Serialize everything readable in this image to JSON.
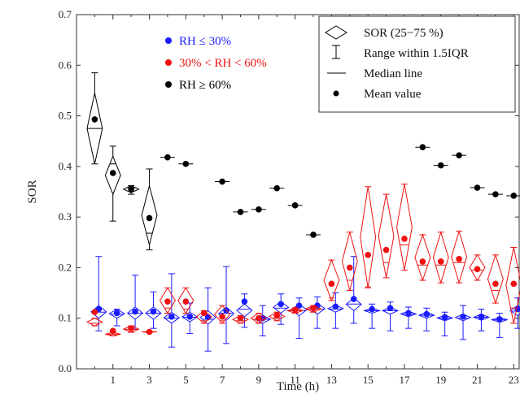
{
  "chart_data": {
    "type": "box",
    "xlabel": "Time (h)",
    "ylabel": "SOR",
    "xlim": [
      -1,
      23.3
    ],
    "ylim": [
      0,
      0.7
    ],
    "x_ticks": [
      1,
      3,
      5,
      7,
      9,
      11,
      13,
      15,
      17,
      19,
      21,
      23
    ],
    "y_ticks": [
      0.0,
      0.1,
      0.2,
      0.3,
      0.4,
      0.5,
      0.6,
      0.7
    ],
    "legend_box": {
      "placement": "top-right",
      "entries": [
        {
          "symbol": "diamond",
          "label": "SOR (25−75 %)"
        },
        {
          "symbol": "whisker",
          "label": "Range within 1.5IQR"
        },
        {
          "symbol": "line",
          "label": "Median line"
        },
        {
          "symbol": "dot",
          "label": "Mean value"
        }
      ]
    },
    "group_legend": {
      "placement": "top-left",
      "entries": [
        {
          "series_index": 0,
          "label": "RH ≤ 30%"
        },
        {
          "series_index": 1,
          "label": "30% < RH < 60%"
        },
        {
          "series_index": 2,
          "label": "RH ≥ 60%"
        }
      ]
    },
    "series": [
      {
        "color": "#1a1aff",
        "offset": 0.22,
        "x": [
          0,
          1,
          2,
          3,
          4,
          5,
          6,
          7,
          8,
          9,
          10,
          11,
          12,
          13,
          14,
          15,
          16,
          17,
          18,
          19,
          20,
          21,
          22,
          23
        ],
        "mean": [
          0.118,
          0.11,
          0.113,
          0.113,
          0.103,
          0.103,
          0.102,
          0.115,
          0.133,
          0.1,
          0.128,
          0.125,
          0.125,
          0.123,
          0.138,
          0.118,
          0.12,
          0.11,
          0.108,
          0.102,
          0.103,
          0.103,
          0.098,
          0.118
        ],
        "q1": [
          0.1,
          0.1,
          0.098,
          0.098,
          0.09,
          0.093,
          0.088,
          0.096,
          0.103,
          0.09,
          0.11,
          0.105,
          0.108,
          0.112,
          0.115,
          0.11,
          0.108,
          0.103,
          0.1,
          0.095,
          0.095,
          0.096,
          0.092,
          0.105
        ],
        "median": [
          0.112,
          0.108,
          0.11,
          0.11,
          0.1,
          0.102,
          0.098,
          0.11,
          0.118,
          0.098,
          0.12,
          0.115,
          0.118,
          0.118,
          0.128,
          0.115,
          0.115,
          0.108,
          0.106,
          0.1,
          0.1,
          0.102,
          0.097,
          0.114
        ],
        "q3": [
          0.125,
          0.118,
          0.122,
          0.122,
          0.112,
          0.112,
          0.115,
          0.122,
          0.128,
          0.106,
          0.133,
          0.128,
          0.13,
          0.126,
          0.14,
          0.12,
          0.122,
          0.114,
          0.112,
          0.106,
          0.108,
          0.108,
          0.102,
          0.125
        ],
        "wlow": [
          0.075,
          0.085,
          0.078,
          0.08,
          0.043,
          0.07,
          0.035,
          0.05,
          0.082,
          0.065,
          0.088,
          0.06,
          0.08,
          0.08,
          0.09,
          0.08,
          0.075,
          0.08,
          0.075,
          0.065,
          0.058,
          0.075,
          0.062,
          0.08
        ],
        "whigh": [
          0.222,
          0.118,
          0.185,
          0.152,
          0.188,
          0.13,
          0.16,
          0.202,
          0.148,
          0.125,
          0.148,
          0.14,
          0.142,
          0.15,
          0.222,
          0.128,
          0.132,
          0.122,
          0.12,
          0.112,
          0.125,
          0.118,
          0.11,
          0.14
        ]
      },
      {
        "color": "#ee1111",
        "offset": 0.0,
        "x": [
          0,
          1,
          2,
          3,
          4,
          5,
          6,
          7,
          8,
          9,
          10,
          11,
          12,
          13,
          14,
          15,
          16,
          17,
          18,
          19,
          20,
          21,
          22,
          23
        ],
        "mean": [
          0.112,
          0.075,
          0.08,
          0.073,
          0.133,
          0.133,
          0.11,
          0.103,
          0.1,
          0.1,
          0.105,
          0.117,
          0.12,
          0.168,
          0.2,
          0.225,
          0.235,
          0.257,
          0.212,
          0.212,
          0.217,
          0.197,
          0.168,
          0.168
        ],
        "q1": [
          0.085,
          0.065,
          0.072,
          0.072,
          0.11,
          0.11,
          0.09,
          0.09,
          0.09,
          0.09,
          0.095,
          0.11,
          0.112,
          0.135,
          0.155,
          0.16,
          0.18,
          0.195,
          0.175,
          0.17,
          0.17,
          0.175,
          0.13,
          0.09
        ],
        "median": [
          0.09,
          0.068,
          0.078,
          0.073,
          0.12,
          0.118,
          0.095,
          0.095,
          0.095,
          0.098,
          0.1,
          0.115,
          0.118,
          0.14,
          0.175,
          0.162,
          0.21,
          0.245,
          0.205,
          0.205,
          0.21,
          0.195,
          0.155,
          0.12
        ],
        "q3": [
          0.1,
          0.072,
          0.085,
          0.074,
          0.16,
          0.16,
          0.115,
          0.125,
          0.105,
          0.11,
          0.112,
          0.12,
          0.125,
          0.215,
          0.27,
          0.36,
          0.345,
          0.365,
          0.265,
          0.27,
          0.272,
          0.225,
          0.225,
          0.24
        ],
        "wlow": [
          0.085,
          0.065,
          0.072,
          0.072,
          0.11,
          0.11,
          0.09,
          0.09,
          0.09,
          0.09,
          0.095,
          0.11,
          0.112,
          0.135,
          0.155,
          0.16,
          0.18,
          0.195,
          0.175,
          0.17,
          0.17,
          0.175,
          0.13,
          0.09
        ],
        "whigh": [
          0.1,
          0.072,
          0.085,
          0.074,
          0.16,
          0.16,
          0.115,
          0.125,
          0.105,
          0.11,
          0.112,
          0.12,
          0.125,
          0.215,
          0.27,
          0.36,
          0.345,
          0.365,
          0.265,
          0.27,
          0.272,
          0.225,
          0.225,
          0.24
        ]
      },
      {
        "color": "#000000",
        "offset": 0.0,
        "x": [
          0,
          1,
          2,
          3,
          4,
          5,
          6,
          7,
          8,
          9,
          10,
          11,
          12,
          13,
          14,
          15,
          16,
          17,
          18,
          19,
          20,
          21,
          22,
          23
        ],
        "mean": [
          0.493,
          0.387,
          0.355,
          0.298,
          0.418,
          0.405,
          null,
          0.37,
          0.31,
          0.315,
          0.357,
          0.323,
          0.265,
          null,
          null,
          null,
          null,
          null,
          0.438,
          0.402,
          0.422,
          0.358,
          0.345,
          0.342
        ],
        "q1": [
          0.405,
          0.345,
          0.348,
          0.245,
          null,
          null,
          null,
          null,
          null,
          null,
          null,
          null,
          null,
          null,
          null,
          null,
          null,
          null,
          null,
          null,
          null,
          null,
          null,
          null
        ],
        "median": [
          0.475,
          0.405,
          0.358,
          0.268,
          null,
          null,
          null,
          null,
          null,
          null,
          null,
          null,
          null,
          null,
          null,
          null,
          null,
          null,
          null,
          null,
          null,
          null,
          null,
          null
        ],
        "q3": [
          0.545,
          0.42,
          0.362,
          0.362,
          null,
          null,
          null,
          null,
          null,
          null,
          null,
          null,
          null,
          null,
          null,
          null,
          null,
          null,
          null,
          null,
          null,
          null,
          null,
          null
        ],
        "wlow": [
          0.405,
          0.292,
          0.345,
          0.235,
          null,
          null,
          null,
          null,
          null,
          null,
          null,
          null,
          null,
          null,
          null,
          null,
          null,
          null,
          null,
          null,
          null,
          null,
          null,
          null
        ],
        "whigh": [
          0.585,
          0.44,
          0.362,
          0.395,
          null,
          null,
          null,
          null,
          null,
          null,
          null,
          null,
          null,
          null,
          null,
          null,
          null,
          null,
          null,
          null,
          null,
          null,
          null,
          null
        ]
      }
    ]
  }
}
